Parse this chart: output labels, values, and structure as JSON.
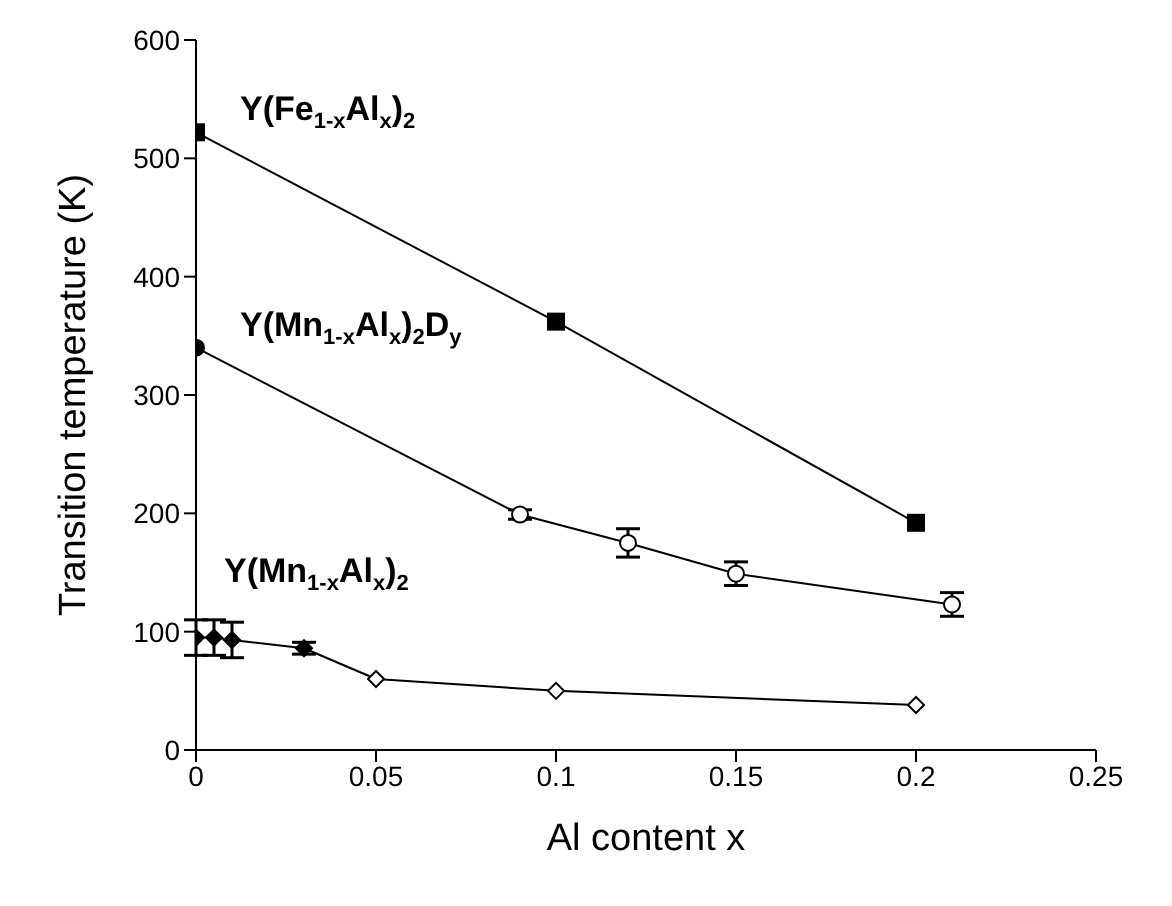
{
  "chart_data": {
    "type": "line",
    "xlabel": "Al content x",
    "ylabel": "Transition temperature (K)",
    "xlim": [
      0,
      0.25
    ],
    "xticks": [
      0,
      0.05,
      0.1,
      0.15,
      0.2,
      0.25
    ],
    "ylim": [
      0,
      600
    ],
    "yticks": [
      0,
      100,
      200,
      300,
      400,
      500,
      600
    ],
    "grid": false,
    "legend": false,
    "line_style": "solid",
    "series": [
      {
        "name": "Y(Fe$_{1-x}$Al$_{x}$)$_{2}$",
        "color": "#000000",
        "marker": "square",
        "x": [
          0,
          0.1,
          0.2
        ],
        "values": [
          522,
          362,
          192
        ],
        "colors": [
          "#000000",
          "#000000",
          "#000000"
        ]
      },
      {
        "name": "Y(Mn$_{1-x}$Al$_{x}$)$_{2}$D$_{y}$",
        "color": "#000000",
        "marker": "circle",
        "x": [
          0,
          0.09,
          0.12,
          0.15,
          0.21
        ],
        "values": [
          340,
          199,
          175,
          149,
          123
        ],
        "colors": [
          "#000000",
          "#ffffff",
          "#ffffff",
          "#ffffff",
          "#ffffff"
        ],
        "errors": [
          null,
          4,
          12,
          10,
          10
        ]
      },
      {
        "name": "Y(Mn$_{1-x}$Al$_{x}$)$_{2}$",
        "color": "#000000",
        "marker": "diamond",
        "x": [
          0,
          0.005,
          0.01,
          0.03,
          0.05,
          0.1,
          0.2
        ],
        "values": [
          95,
          95,
          93,
          86,
          60,
          50,
          38
        ],
        "colors": [
          "#000000",
          "#000000",
          "#000000",
          "#000000",
          "#ffffff",
          "#ffffff",
          "#ffffff"
        ],
        "errors": [
          15,
          15,
          15,
          5,
          null,
          null,
          null
        ]
      }
    ]
  }
}
